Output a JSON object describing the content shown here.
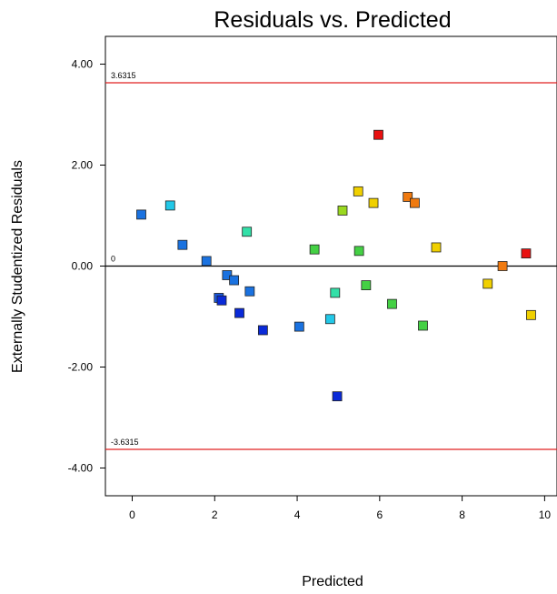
{
  "chart_data": {
    "type": "scatter",
    "title": "Residuals vs. Predicted",
    "xlabel": "Predicted",
    "ylabel": "Externally Studentized Residuals",
    "xlim": [
      -0.65,
      10.3
    ],
    "ylim": [
      -4.55,
      4.55
    ],
    "x_ticks": [
      0,
      2,
      4,
      6,
      8,
      10
    ],
    "x_tick_labels": [
      "0",
      "2",
      "4",
      "6",
      "8",
      "10"
    ],
    "y_ticks": [
      4,
      2,
      0,
      -2,
      -4
    ],
    "y_tick_labels": [
      "4.00",
      "2.00",
      "0.00",
      "-2.00",
      "-4.00"
    ],
    "reference_lines": [
      {
        "value": 3.6315,
        "label": "3.6315",
        "color": "#e02020"
      },
      {
        "value": 0,
        "label": "0",
        "color": "#000000"
      },
      {
        "value": -3.6315,
        "label": "-3.6315",
        "color": "#e02020"
      }
    ],
    "grid": false,
    "points": [
      {
        "x": 0.22,
        "y": 1.02,
        "color": "#1a72e0"
      },
      {
        "x": 0.92,
        "y": 1.2,
        "color": "#22c8e8"
      },
      {
        "x": 1.22,
        "y": 0.42,
        "color": "#1a72e0"
      },
      {
        "x": 1.8,
        "y": 0.1,
        "color": "#1a72e0"
      },
      {
        "x": 2.1,
        "y": -0.63,
        "color": "#1a58e0"
      },
      {
        "x": 2.17,
        "y": -0.68,
        "color": "#0a2ad8"
      },
      {
        "x": 2.3,
        "y": -0.18,
        "color": "#1a72e0"
      },
      {
        "x": 2.47,
        "y": -0.28,
        "color": "#1a72e0"
      },
      {
        "x": 2.6,
        "y": -0.93,
        "color": "#0a2ad8"
      },
      {
        "x": 2.78,
        "y": 0.68,
        "color": "#33e0a8"
      },
      {
        "x": 2.85,
        "y": -0.5,
        "color": "#1a72e0"
      },
      {
        "x": 3.17,
        "y": -1.27,
        "color": "#0a2ad8"
      },
      {
        "x": 4.05,
        "y": -1.2,
        "color": "#1a72e0"
      },
      {
        "x": 4.42,
        "y": 0.33,
        "color": "#44d044"
      },
      {
        "x": 4.8,
        "y": -1.05,
        "color": "#22c8e8"
      },
      {
        "x": 4.92,
        "y": -0.53,
        "color": "#33e0a8"
      },
      {
        "x": 4.97,
        "y": -2.58,
        "color": "#0a2ad8"
      },
      {
        "x": 5.1,
        "y": 1.1,
        "color": "#9ad820"
      },
      {
        "x": 5.48,
        "y": 1.48,
        "color": "#f0d000"
      },
      {
        "x": 5.5,
        "y": 0.3,
        "color": "#44d044"
      },
      {
        "x": 5.67,
        "y": -0.38,
        "color": "#44d044"
      },
      {
        "x": 5.85,
        "y": 1.25,
        "color": "#f0d000"
      },
      {
        "x": 5.97,
        "y": 2.6,
        "color": "#e81010"
      },
      {
        "x": 6.3,
        "y": -0.75,
        "color": "#44d044"
      },
      {
        "x": 6.68,
        "y": 1.37,
        "color": "#f07a10"
      },
      {
        "x": 6.85,
        "y": 1.25,
        "color": "#f07a10"
      },
      {
        "x": 7.05,
        "y": -1.18,
        "color": "#44d044"
      },
      {
        "x": 7.37,
        "y": 0.37,
        "color": "#f0d000"
      },
      {
        "x": 8.62,
        "y": -0.35,
        "color": "#f0d000"
      },
      {
        "x": 8.98,
        "y": 0.0,
        "color": "#f07a10"
      },
      {
        "x": 9.55,
        "y": 0.25,
        "color": "#e81010"
      },
      {
        "x": 9.67,
        "y": -0.97,
        "color": "#f0d000"
      }
    ]
  }
}
